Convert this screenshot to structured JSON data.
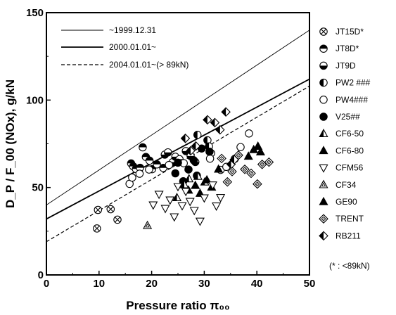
{
  "chart_data": {
    "type": "scatter",
    "xlabel": "Pressure ratio π₀₀",
    "ylabel": "D_P / F_00 (NOx), g/kN",
    "xlim": [
      0,
      50
    ],
    "ylim": [
      0,
      150
    ],
    "x_ticks": [
      "0",
      "10",
      "20",
      "30",
      "40",
      "50"
    ],
    "y_ticks": [
      "0",
      "50",
      "100",
      "150"
    ],
    "footnote": "(* : <89kN)",
    "reference_lines": [
      {
        "name": "~1999.12.31",
        "style": "thin",
        "points": [
          [
            0,
            40
          ],
          [
            50,
            140
          ]
        ]
      },
      {
        "name": "2000.01.01~",
        "style": "solid",
        "points": [
          [
            0,
            32
          ],
          [
            50,
            112
          ]
        ]
      },
      {
        "name": "2004.01.01~(> 89kN)",
        "style": "dashed",
        "points": [
          [
            0,
            19
          ],
          [
            50,
            108
          ]
        ]
      }
    ],
    "series": [
      {
        "name": "JT15D*",
        "marker": "circle-x",
        "values": [
          [
            9.8,
            37.2
          ],
          [
            12.2,
            37.6
          ],
          [
            13.5,
            31.6
          ],
          [
            9.6,
            26.6
          ]
        ]
      },
      {
        "name": "JT8D*",
        "marker": "half-top",
        "values": [
          [
            16.1,
            63.8
          ],
          [
            16.5,
            62.1
          ],
          [
            17.0,
            60.6
          ],
          [
            17.8,
            61.3
          ],
          [
            18.3,
            73.0
          ],
          [
            18.9,
            67.5
          ],
          [
            19.6,
            65.4
          ],
          [
            20.1,
            60.5
          ],
          [
            21.0,
            63.2
          ],
          [
            22.2,
            61.2
          ]
        ]
      },
      {
        "name": "JT9D",
        "marker": "half-bottom",
        "values": [
          [
            22.5,
            68.8
          ],
          [
            23.1,
            70.1
          ],
          [
            24.0,
            64.5
          ],
          [
            24.5,
            67.6
          ],
          [
            25.3,
            66.2
          ],
          [
            26.5,
            70.8
          ],
          [
            27.4,
            68.0
          ],
          [
            28.3,
            64.6
          ]
        ]
      },
      {
        "name": "PW2 ###",
        "marker": "half-left",
        "values": [
          [
            28.7,
            80.1
          ],
          [
            30.6,
            77.0
          ],
          [
            30.9,
            73.5
          ],
          [
            31.3,
            69.6
          ]
        ]
      },
      {
        "name": "PW4###",
        "marker": "circle-open",
        "values": [
          [
            15.8,
            52.1
          ],
          [
            16.3,
            55.7
          ],
          [
            17.7,
            57.9
          ],
          [
            19.5,
            60.3
          ],
          [
            23.3,
            62.9
          ],
          [
            26.1,
            63.9
          ],
          [
            31.1,
            66.5
          ],
          [
            33.1,
            60.1
          ],
          [
            34.2,
            61.8
          ],
          [
            35.8,
            66.4
          ],
          [
            36.9,
            73.1
          ],
          [
            38.5,
            80.9
          ]
        ]
      },
      {
        "name": "V25##",
        "marker": "circle-filled",
        "values": [
          [
            24.5,
            58.1
          ],
          [
            25.0,
            64.2
          ],
          [
            26.0,
            53.6
          ],
          [
            27.0,
            60.3
          ],
          [
            28.0,
            65.6
          ],
          [
            28.6,
            56.8
          ],
          [
            29.5,
            72.3
          ],
          [
            31.0,
            70.5
          ]
        ]
      },
      {
        "name": "CF6-50",
        "marker": "triangle-half",
        "values": [
          [
            24.8,
            44.1
          ],
          [
            26.2,
            51.5
          ],
          [
            27.1,
            54.9
          ],
          [
            28.8,
            56.3
          ],
          [
            30.1,
            53.1
          ]
        ]
      },
      {
        "name": "CF6-80",
        "marker": "triangle-filled",
        "values": [
          [
            27.0,
            48.4
          ],
          [
            28.3,
            51.1
          ],
          [
            29.2,
            46.6
          ],
          [
            30.5,
            54.3
          ],
          [
            31.4,
            50.1
          ],
          [
            32.7,
            60.4
          ]
        ]
      },
      {
        "name": "CFM56",
        "marker": "triangle-open-down",
        "values": [
          [
            20.3,
            40.1
          ],
          [
            21.4,
            46.2
          ],
          [
            22.6,
            38.1
          ],
          [
            23.5,
            42.9
          ],
          [
            24.3,
            33.3
          ],
          [
            25.0,
            50.6
          ],
          [
            25.8,
            39.6
          ],
          [
            26.5,
            47.8
          ],
          [
            27.3,
            42.1
          ],
          [
            28.1,
            36.9
          ],
          [
            29.2,
            30.8
          ],
          [
            30.0,
            44.1
          ],
          [
            31.6,
            51.5
          ],
          [
            32.3,
            39.5
          ],
          [
            33.1,
            44.3
          ]
        ]
      },
      {
        "name": "CF34",
        "marker": "triangle-nested",
        "values": [
          [
            19.2,
            28.2
          ]
        ]
      },
      {
        "name": "GE90",
        "marker": "triangle-filled",
        "values": [
          [
            38.4,
            67.8
          ],
          [
            39.4,
            71.6
          ],
          [
            40.2,
            73.5
          ],
          [
            40.7,
            70.3
          ]
        ]
      },
      {
        "name": "TRENT",
        "marker": "diamond-pattern",
        "values": [
          [
            33.3,
            66.6
          ],
          [
            34.4,
            53.2
          ],
          [
            35.3,
            59.1
          ],
          [
            36.5,
            68.5
          ],
          [
            37.7,
            60.4
          ],
          [
            38.9,
            58.1
          ],
          [
            40.1,
            52.0
          ],
          [
            41.0,
            63.2
          ],
          [
            42.3,
            64.5
          ]
        ]
      },
      {
        "name": "RB211",
        "marker": "diamond-half",
        "values": [
          [
            26.4,
            78.1
          ],
          [
            27.4,
            71.0
          ],
          [
            28.4,
            73.7
          ],
          [
            30.6,
            88.7
          ],
          [
            32.0,
            87.1
          ],
          [
            33.0,
            83.0
          ],
          [
            34.1,
            93.2
          ],
          [
            35.1,
            63.3
          ],
          [
            35.7,
            65.9
          ]
        ]
      }
    ]
  }
}
